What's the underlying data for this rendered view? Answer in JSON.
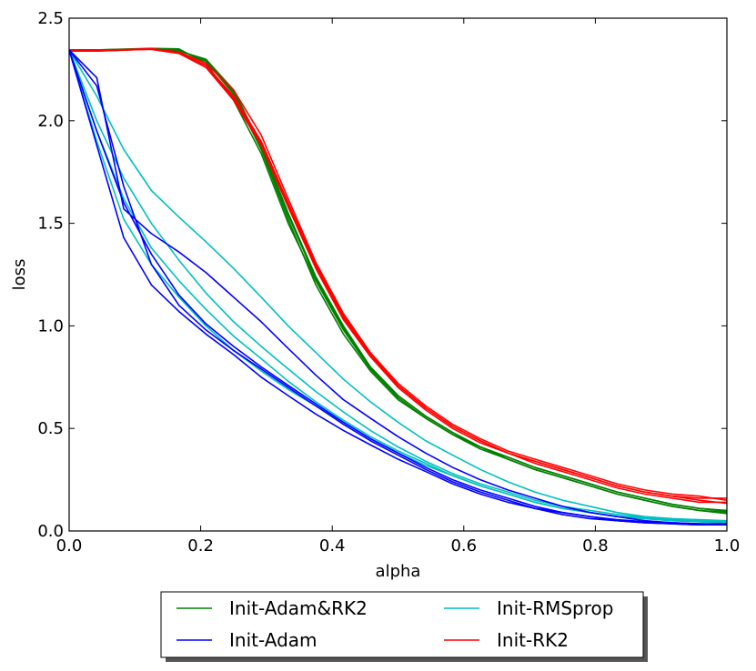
{
  "chart_data": {
    "type": "line",
    "title": "",
    "xlabel": "alpha",
    "ylabel": "loss",
    "xlim": [
      0.0,
      1.0
    ],
    "ylim": [
      0.0,
      2.5
    ],
    "xticks": [
      "0.0",
      "0.2",
      "0.4",
      "0.6",
      "0.8",
      "1.0"
    ],
    "yticks": [
      "0.0",
      "0.5",
      "1.0",
      "1.5",
      "2.0",
      "2.5"
    ],
    "grid": false,
    "legend_position": "bottom-center",
    "x": [
      0.0,
      0.042,
      0.083,
      0.125,
      0.167,
      0.208,
      0.25,
      0.292,
      0.333,
      0.375,
      0.417,
      0.458,
      0.5,
      0.542,
      0.583,
      0.625,
      0.667,
      0.708,
      0.75,
      0.792,
      0.833,
      0.875,
      0.917,
      0.958,
      1.0
    ],
    "legend": [
      {
        "name": "Init-Adam&RK2",
        "color": "#008000"
      },
      {
        "name": "Init-RMSprop",
        "color": "#00bfbf"
      },
      {
        "name": "Init-Adam",
        "color": "#0000ff"
      },
      {
        "name": "Init-RK2",
        "color": "#ff0000"
      }
    ],
    "series": [
      {
        "name": "Init-Adam&RK2",
        "color": "#008000",
        "values": [
          2.345,
          2.345,
          2.348,
          2.352,
          2.345,
          2.29,
          2.13,
          1.86,
          1.52,
          1.2,
          0.96,
          0.78,
          0.64,
          0.55,
          0.47,
          0.4,
          0.35,
          0.3,
          0.26,
          0.22,
          0.18,
          0.15,
          0.12,
          0.1,
          0.09
        ]
      },
      {
        "name": "Init-Adam&RK2",
        "color": "#008000",
        "values": [
          2.345,
          2.345,
          2.347,
          2.35,
          2.34,
          2.3,
          2.15,
          1.88,
          1.55,
          1.24,
          1.0,
          0.8,
          0.66,
          0.56,
          0.48,
          0.41,
          0.36,
          0.31,
          0.27,
          0.23,
          0.19,
          0.16,
          0.13,
          0.11,
          0.1
        ]
      },
      {
        "name": "Init-Adam&RK2",
        "color": "#008000",
        "values": [
          2.345,
          2.345,
          2.349,
          2.353,
          2.35,
          2.28,
          2.1,
          1.84,
          1.5,
          1.22,
          0.98,
          0.79,
          0.65,
          0.55,
          0.47,
          0.41,
          0.35,
          0.3,
          0.26,
          0.22,
          0.18,
          0.15,
          0.12,
          0.1,
          0.085
        ]
      },
      {
        "name": "Init-Adam&RK2",
        "color": "#008000",
        "values": [
          2.345,
          2.345,
          2.346,
          2.35,
          2.342,
          2.295,
          2.14,
          1.87,
          1.54,
          1.23,
          0.99,
          0.8,
          0.66,
          0.56,
          0.48,
          0.41,
          0.36,
          0.31,
          0.27,
          0.23,
          0.19,
          0.16,
          0.13,
          0.11,
          0.095
        ]
      },
      {
        "name": "Init-RK2",
        "color": "#ff0000",
        "values": [
          2.34,
          2.34,
          2.345,
          2.35,
          2.33,
          2.27,
          2.12,
          1.9,
          1.6,
          1.3,
          1.05,
          0.86,
          0.71,
          0.6,
          0.51,
          0.44,
          0.38,
          0.34,
          0.3,
          0.26,
          0.22,
          0.19,
          0.17,
          0.16,
          0.16
        ]
      },
      {
        "name": "Init-RK2",
        "color": "#ff0000",
        "values": [
          2.34,
          2.34,
          2.345,
          2.348,
          2.328,
          2.26,
          2.1,
          1.88,
          1.58,
          1.28,
          1.03,
          0.85,
          0.7,
          0.59,
          0.5,
          0.43,
          0.38,
          0.33,
          0.29,
          0.25,
          0.21,
          0.18,
          0.16,
          0.14,
          0.14
        ]
      },
      {
        "name": "Init-RK2",
        "color": "#ff0000",
        "values": [
          2.345,
          2.345,
          2.347,
          2.352,
          2.335,
          2.28,
          2.15,
          1.93,
          1.62,
          1.31,
          1.06,
          0.87,
          0.72,
          0.61,
          0.52,
          0.45,
          0.39,
          0.35,
          0.31,
          0.27,
          0.23,
          0.2,
          0.18,
          0.17,
          0.15
        ]
      },
      {
        "name": "Init-RK2",
        "color": "#ff0000",
        "values": [
          2.34,
          2.34,
          2.344,
          2.349,
          2.33,
          2.27,
          2.11,
          1.89,
          1.59,
          1.29,
          1.04,
          0.86,
          0.71,
          0.6,
          0.51,
          0.44,
          0.38,
          0.34,
          0.3,
          0.26,
          0.22,
          0.19,
          0.17,
          0.15,
          0.135
        ]
      },
      {
        "name": "Init-RMSprop",
        "color": "#00bfbf",
        "values": [
          2.345,
          2.12,
          1.86,
          1.66,
          1.53,
          1.41,
          1.28,
          1.14,
          1.0,
          0.87,
          0.74,
          0.63,
          0.53,
          0.44,
          0.37,
          0.3,
          0.24,
          0.19,
          0.15,
          0.12,
          0.09,
          0.07,
          0.06,
          0.055,
          0.05
        ]
      },
      {
        "name": "Init-RMSprop",
        "color": "#00bfbf",
        "values": [
          2.345,
          1.9,
          1.52,
          1.3,
          1.14,
          1.0,
          0.88,
          0.78,
          0.69,
          0.61,
          0.53,
          0.45,
          0.38,
          0.32,
          0.27,
          0.22,
          0.18,
          0.14,
          0.11,
          0.09,
          0.07,
          0.06,
          0.05,
          0.045,
          0.04
        ]
      },
      {
        "name": "Init-RMSprop",
        "color": "#00bfbf",
        "values": [
          2.345,
          1.95,
          1.62,
          1.38,
          1.22,
          1.08,
          0.95,
          0.84,
          0.73,
          0.63,
          0.54,
          0.46,
          0.39,
          0.33,
          0.27,
          0.22,
          0.18,
          0.14,
          0.11,
          0.09,
          0.07,
          0.06,
          0.05,
          0.045,
          0.04
        ]
      },
      {
        "name": "Init-RMSprop",
        "color": "#00bfbf",
        "values": [
          2.345,
          2.0,
          1.72,
          1.5,
          1.32,
          1.16,
          1.02,
          0.9,
          0.79,
          0.68,
          0.58,
          0.49,
          0.41,
          0.34,
          0.28,
          0.23,
          0.19,
          0.15,
          0.12,
          0.1,
          0.08,
          0.065,
          0.055,
          0.05,
          0.045
        ]
      },
      {
        "name": "Init-Adam",
        "color": "#0000ff",
        "values": [
          2.345,
          2.21,
          1.57,
          1.45,
          1.36,
          1.26,
          1.14,
          1.02,
          0.89,
          0.76,
          0.64,
          0.55,
          0.46,
          0.38,
          0.31,
          0.25,
          0.2,
          0.16,
          0.12,
          0.09,
          0.07,
          0.05,
          0.04,
          0.035,
          0.03
        ]
      },
      {
        "name": "Init-Adam",
        "color": "#0000ff",
        "values": [
          2.345,
          1.88,
          1.43,
          1.2,
          1.07,
          0.96,
          0.86,
          0.75,
          0.66,
          0.57,
          0.49,
          0.42,
          0.35,
          0.29,
          0.23,
          0.18,
          0.14,
          0.11,
          0.08,
          0.06,
          0.05,
          0.04,
          0.035,
          0.03,
          0.03
        ]
      },
      {
        "name": "Init-Adam",
        "color": "#0000ff",
        "values": [
          2.345,
          2.17,
          1.68,
          1.3,
          1.1,
          0.98,
          0.88,
          0.79,
          0.7,
          0.61,
          0.52,
          0.44,
          0.37,
          0.3,
          0.24,
          0.19,
          0.15,
          0.11,
          0.09,
          0.07,
          0.05,
          0.04,
          0.035,
          0.03,
          0.03
        ]
      },
      {
        "name": "Init-Adam",
        "color": "#0000ff",
        "values": [
          2.345,
          1.95,
          1.6,
          1.35,
          1.15,
          1.01,
          0.9,
          0.8,
          0.71,
          0.62,
          0.53,
          0.45,
          0.38,
          0.31,
          0.25,
          0.2,
          0.16,
          0.12,
          0.09,
          0.07,
          0.055,
          0.045,
          0.04,
          0.035,
          0.035
        ]
      }
    ]
  }
}
